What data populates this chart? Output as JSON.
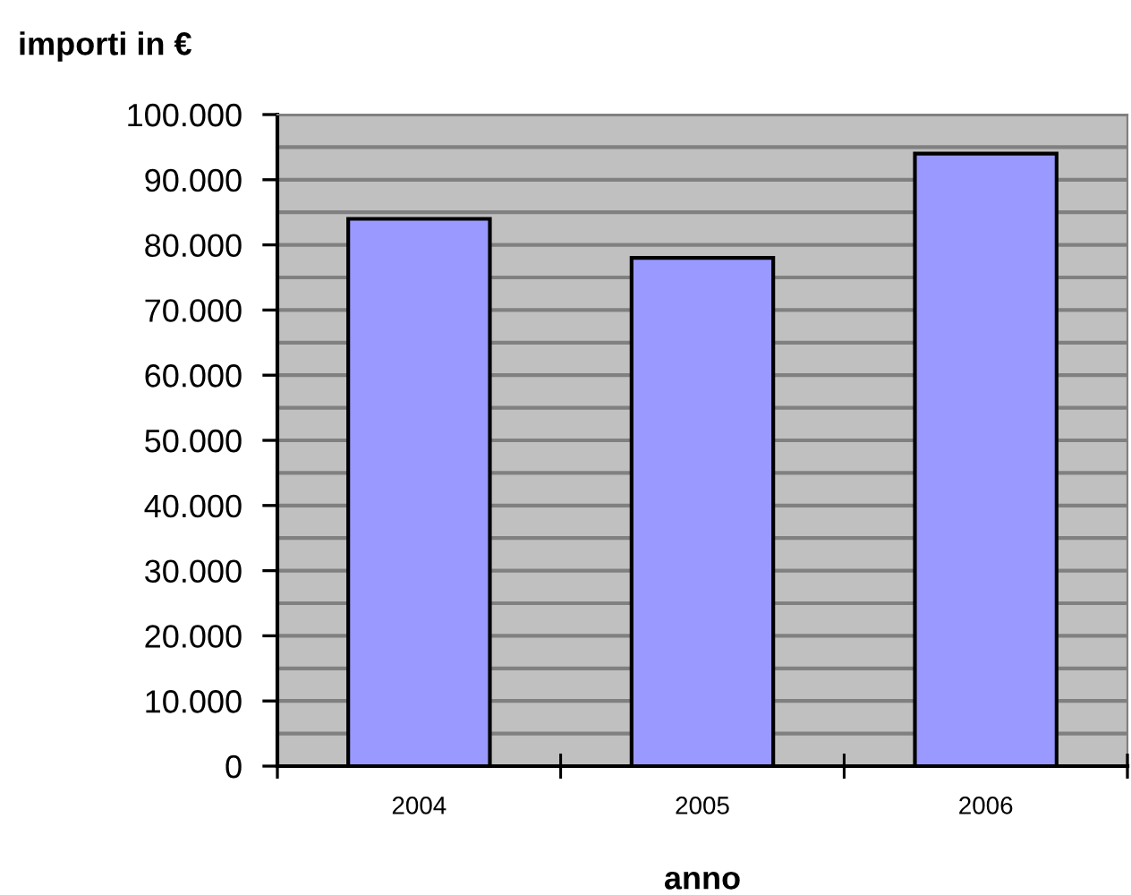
{
  "chart_data": {
    "type": "bar",
    "ylabel": "importi in €",
    "xlabel": "anno",
    "categories": [
      "2004",
      "2005",
      "2006"
    ],
    "series": [
      {
        "color": "#9999ff",
        "values": [
          84000,
          78000,
          94000
        ]
      }
    ],
    "ylim": [
      0,
      100000
    ],
    "yticks": [
      {
        "value": 0,
        "label": "0"
      },
      {
        "value": 5000,
        "label": null
      },
      {
        "value": 10000,
        "label": "10.000"
      },
      {
        "value": 15000,
        "label": null
      },
      {
        "value": 20000,
        "label": "20.000"
      },
      {
        "value": 25000,
        "label": null
      },
      {
        "value": 30000,
        "label": "30.000"
      },
      {
        "value": 35000,
        "label": null
      },
      {
        "value": 40000,
        "label": "40.000"
      },
      {
        "value": 45000,
        "label": null
      },
      {
        "value": 50000,
        "label": "50.000"
      },
      {
        "value": 55000,
        "label": null
      },
      {
        "value": 60000,
        "label": "60.000"
      },
      {
        "value": 65000,
        "label": null
      },
      {
        "value": 70000,
        "label": "70.000"
      },
      {
        "value": 75000,
        "label": null
      },
      {
        "value": 80000,
        "label": "80.000"
      },
      {
        "value": 85000,
        "label": null
      },
      {
        "value": 90000,
        "label": "90.000"
      },
      {
        "value": 95000,
        "label": null
      },
      {
        "value": 100000,
        "label": "100.000"
      }
    ],
    "grid": "y",
    "legend": false
  }
}
